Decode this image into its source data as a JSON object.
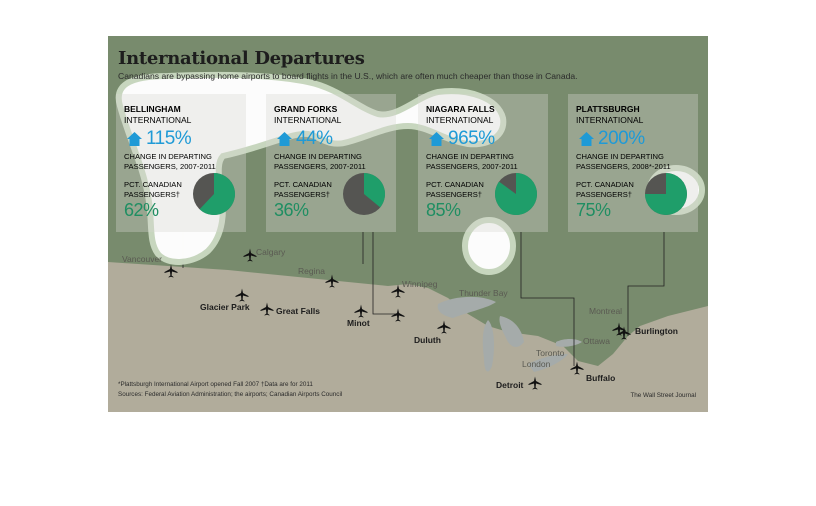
{
  "graphic": {
    "title": "International Departures",
    "subtitle": "Canadians are bypassing home airports to board flights in the U.S., which are often much cheaper than those in Canada.",
    "footnote": "*Plattsburgh International Airport opened Fall 2007    †Data are for 2011",
    "sources": "Sources: Federal Aviation Administration; the airports; Canadian Airports Council",
    "credit": "The Wall Street Journal"
  },
  "chart_data": {
    "type": "pie",
    "airports": [
      {
        "name": "BELLINGHAM",
        "subtitle": "INTERNATIONAL",
        "change_in_departing": "115%",
        "change_label": "CHANGE IN DEPARTING PASSENGERS, 2007-2011",
        "canadian_label": "PCT. CANADIAN PASSENGERS†",
        "canadian_pct": 62,
        "canadian_pct_label": "62%"
      },
      {
        "name": "GRAND FORKS",
        "subtitle": "INTERNATIONAL",
        "change_in_departing": "44%",
        "change_label": "CHANGE IN DEPARTING PASSENGERS, 2007-2011",
        "canadian_label": "PCT. CANADIAN PASSENGERS†",
        "canadian_pct": 36,
        "canadian_pct_label": "36%"
      },
      {
        "name": "NIAGARA FALLS",
        "subtitle": "INTERNATIONAL",
        "change_in_departing": "965%",
        "change_label": "CHANGE IN DEPARTING PASSENGERS, 2007-2011",
        "canadian_label": "PCT. CANADIAN PASSENGERS†",
        "canadian_pct": 85,
        "canadian_pct_label": "85%"
      },
      {
        "name": "PLATTSBURGH",
        "subtitle": "INTERNATIONAL",
        "change_in_departing": "200%",
        "change_label": "CHANGE IN DEPARTING PASSENGERS, 2008*-2011",
        "canadian_label": "PCT. CANADIAN PASSENGERS†",
        "canadian_pct": 75,
        "canadian_pct_label": "75%"
      }
    ],
    "colors": {
      "canadian": "#1f9e6a",
      "other": "#555552",
      "change": "#1f9ad6"
    }
  },
  "map": {
    "cities": [
      {
        "name": "Vancouver",
        "style": "light"
      },
      {
        "name": "Calgary",
        "style": "light"
      },
      {
        "name": "Regina",
        "style": "light"
      },
      {
        "name": "Winnipeg",
        "style": "light"
      },
      {
        "name": "Thunder Bay",
        "style": "light"
      },
      {
        "name": "Montreal",
        "style": "light"
      },
      {
        "name": "Ottawa",
        "style": "light"
      },
      {
        "name": "Toronto",
        "style": "light"
      },
      {
        "name": "London",
        "style": "light"
      },
      {
        "name": "Glacier Park",
        "style": "bold"
      },
      {
        "name": "Great Falls",
        "style": "bold"
      },
      {
        "name": "Minot",
        "style": "bold"
      },
      {
        "name": "Duluth",
        "style": "bold"
      },
      {
        "name": "Detroit",
        "style": "bold"
      },
      {
        "name": "Buffalo",
        "style": "bold"
      },
      {
        "name": "Burlington",
        "style": "bold"
      }
    ],
    "colors": {
      "canada": "#5c7a50",
      "us": "#b3ac95",
      "lakes": "#9aa3a6",
      "highlight": "#ffffff"
    }
  }
}
